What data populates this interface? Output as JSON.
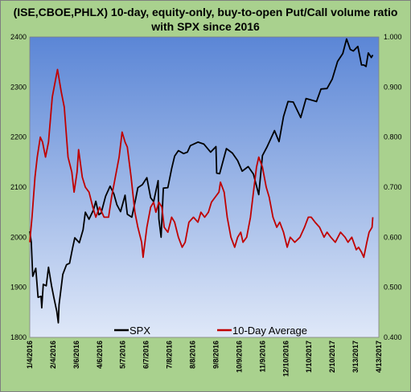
{
  "chart_data": {
    "type": "line",
    "title_lines": [
      "(ISE,CBOE,PHLX) 10-day, equity-only, buy-to-open Put/Call volume ratio",
      "with SPX since 2016"
    ],
    "x_tick_labels": [
      "1/4/2016",
      "2/4/2016",
      "3/6/2016",
      "4/6/2016",
      "5/7/2016",
      "6/7/2016",
      "7/8/2016",
      "8/8/2016",
      "9/8/2016",
      "10/9/2016",
      "11/9/2016",
      "12/10/2016",
      "1/10/2017",
      "2/10/2017",
      "3/13/2017",
      "4/13/2017"
    ],
    "left_axis": {
      "ylim": [
        1800,
        2400
      ],
      "tick_labels": [
        "1800",
        "1900",
        "2000",
        "2100",
        "2200",
        "2300",
        "2400"
      ]
    },
    "right_axis": {
      "ylim": [
        0.4,
        1.0
      ],
      "tick_labels": [
        "0.400",
        "0.500",
        "0.600",
        "0.700",
        "0.800",
        "0.900",
        "1.000"
      ]
    },
    "series": [
      {
        "name": "SPX",
        "color": "#000000",
        "axis": "left",
        "points": [
          [
            "2016-01-04",
            2012
          ],
          [
            "2016-01-06",
            1990
          ],
          [
            "2016-01-08",
            1922
          ],
          [
            "2016-01-12",
            1938
          ],
          [
            "2016-01-15",
            1880
          ],
          [
            "2016-01-19",
            1882
          ],
          [
            "2016-01-20",
            1859
          ],
          [
            "2016-01-22",
            1906
          ],
          [
            "2016-01-26",
            1903
          ],
          [
            "2016-01-29",
            1940
          ],
          [
            "2016-02-02",
            1903
          ],
          [
            "2016-02-05",
            1880
          ],
          [
            "2016-02-09",
            1852
          ],
          [
            "2016-02-11",
            1829
          ],
          [
            "2016-02-12",
            1865
          ],
          [
            "2016-02-17",
            1926
          ],
          [
            "2016-02-22",
            1945
          ],
          [
            "2016-02-26",
            1948
          ],
          [
            "2016-03-01",
            1978
          ],
          [
            "2016-03-04",
            1999
          ],
          [
            "2016-03-10",
            1989
          ],
          [
            "2016-03-15",
            2015
          ],
          [
            "2016-03-18",
            2050
          ],
          [
            "2016-03-23",
            2036
          ],
          [
            "2016-03-29",
            2055
          ],
          [
            "2016-04-01",
            2072
          ],
          [
            "2016-04-05",
            2045
          ],
          [
            "2016-04-08",
            2048
          ],
          [
            "2016-04-14",
            2082
          ],
          [
            "2016-04-20",
            2102
          ],
          [
            "2016-04-25",
            2087
          ],
          [
            "2016-04-29",
            2065
          ],
          [
            "2016-05-04",
            2051
          ],
          [
            "2016-05-10",
            2084
          ],
          [
            "2016-05-13",
            2046
          ],
          [
            "2016-05-19",
            2040
          ],
          [
            "2016-05-24",
            2076
          ],
          [
            "2016-05-27",
            2099
          ],
          [
            "2016-06-02",
            2105
          ],
          [
            "2016-06-08",
            2119
          ],
          [
            "2016-06-13",
            2079
          ],
          [
            "2016-06-17",
            2071
          ],
          [
            "2016-06-23",
            2113
          ],
          [
            "2016-06-24",
            2037
          ],
          [
            "2016-06-27",
            2000
          ],
          [
            "2016-06-30",
            2098
          ],
          [
            "2016-07-06",
            2099
          ],
          [
            "2016-07-11",
            2137
          ],
          [
            "2016-07-15",
            2162
          ],
          [
            "2016-07-20",
            2173
          ],
          [
            "2016-07-27",
            2167
          ],
          [
            "2016-08-01",
            2170
          ],
          [
            "2016-08-05",
            2183
          ],
          [
            "2016-08-15",
            2190
          ],
          [
            "2016-08-23",
            2186
          ],
          [
            "2016-09-01",
            2170
          ],
          [
            "2016-09-08",
            2181
          ],
          [
            "2016-09-09",
            2128
          ],
          [
            "2016-09-13",
            2127
          ],
          [
            "2016-09-22",
            2177
          ],
          [
            "2016-09-30",
            2168
          ],
          [
            "2016-10-07",
            2153
          ],
          [
            "2016-10-13",
            2132
          ],
          [
            "2016-10-21",
            2141
          ],
          [
            "2016-10-28",
            2126
          ],
          [
            "2016-11-04",
            2085
          ],
          [
            "2016-11-09",
            2163
          ],
          [
            "2016-11-15",
            2180
          ],
          [
            "2016-11-25",
            2213
          ],
          [
            "2016-12-01",
            2191
          ],
          [
            "2016-12-07",
            2241
          ],
          [
            "2016-12-13",
            2271
          ],
          [
            "2016-12-20",
            2270
          ],
          [
            "2016-12-30",
            2239
          ],
          [
            "2017-01-06",
            2277
          ],
          [
            "2017-01-13",
            2274
          ],
          [
            "2017-01-20",
            2271
          ],
          [
            "2017-01-26",
            2296
          ],
          [
            "2017-02-03",
            2297
          ],
          [
            "2017-02-10",
            2316
          ],
          [
            "2017-02-17",
            2351
          ],
          [
            "2017-02-24",
            2367
          ],
          [
            "2017-03-01",
            2396
          ],
          [
            "2017-03-06",
            2375
          ],
          [
            "2017-03-10",
            2372
          ],
          [
            "2017-03-16",
            2381
          ],
          [
            "2017-03-21",
            2344
          ],
          [
            "2017-03-24",
            2344
          ],
          [
            "2017-03-27",
            2341
          ],
          [
            "2017-03-30",
            2368
          ],
          [
            "2017-04-03",
            2359
          ],
          [
            "2017-04-05",
            2364
          ]
        ]
      },
      {
        "name": "10-Day Average",
        "color": "#c00000",
        "axis": "right",
        "points": [
          [
            "2016-01-04",
            0.59
          ],
          [
            "2016-01-07",
            0.64
          ],
          [
            "2016-01-11",
            0.72
          ],
          [
            "2016-01-14",
            0.76
          ],
          [
            "2016-01-18",
            0.8
          ],
          [
            "2016-01-21",
            0.79
          ],
          [
            "2016-01-25",
            0.76
          ],
          [
            "2016-01-29",
            0.79
          ],
          [
            "2016-02-03",
            0.88
          ],
          [
            "2016-02-08",
            0.92
          ],
          [
            "2016-02-10",
            0.935
          ],
          [
            "2016-02-15",
            0.89
          ],
          [
            "2016-02-19",
            0.86
          ],
          [
            "2016-02-24",
            0.76
          ],
          [
            "2016-02-29",
            0.73
          ],
          [
            "2016-03-03",
            0.69
          ],
          [
            "2016-03-07",
            0.73
          ],
          [
            "2016-03-09",
            0.775
          ],
          [
            "2016-03-14",
            0.72
          ],
          [
            "2016-03-18",
            0.7
          ],
          [
            "2016-03-23",
            0.69
          ],
          [
            "2016-03-28",
            0.66
          ],
          [
            "2016-04-01",
            0.64
          ],
          [
            "2016-04-06",
            0.66
          ],
          [
            "2016-04-12",
            0.64
          ],
          [
            "2016-04-18",
            0.64
          ],
          [
            "2016-04-22",
            0.68
          ],
          [
            "2016-04-27",
            0.72
          ],
          [
            "2016-05-02",
            0.76
          ],
          [
            "2016-05-06",
            0.81
          ],
          [
            "2016-05-10",
            0.79
          ],
          [
            "2016-05-13",
            0.78
          ],
          [
            "2016-05-18",
            0.72
          ],
          [
            "2016-05-23",
            0.65
          ],
          [
            "2016-05-27",
            0.62
          ],
          [
            "2016-06-01",
            0.59
          ],
          [
            "2016-06-03",
            0.56
          ],
          [
            "2016-06-08",
            0.62
          ],
          [
            "2016-06-13",
            0.66
          ],
          [
            "2016-06-17",
            0.67
          ],
          [
            "2016-06-20",
            0.65
          ],
          [
            "2016-06-24",
            0.67
          ],
          [
            "2016-06-28",
            0.66
          ],
          [
            "2016-07-01",
            0.62
          ],
          [
            "2016-07-06",
            0.61
          ],
          [
            "2016-07-11",
            0.64
          ],
          [
            "2016-07-15",
            0.63
          ],
          [
            "2016-07-20",
            0.6
          ],
          [
            "2016-07-25",
            0.58
          ],
          [
            "2016-07-29",
            0.59
          ],
          [
            "2016-08-03",
            0.63
          ],
          [
            "2016-08-09",
            0.64
          ],
          [
            "2016-08-15",
            0.63
          ],
          [
            "2016-08-19",
            0.65
          ],
          [
            "2016-08-24",
            0.64
          ],
          [
            "2016-08-29",
            0.65
          ],
          [
            "2016-09-02",
            0.67
          ],
          [
            "2016-09-07",
            0.68
          ],
          [
            "2016-09-12",
            0.69
          ],
          [
            "2016-09-14",
            0.71
          ],
          [
            "2016-09-19",
            0.69
          ],
          [
            "2016-09-23",
            0.64
          ],
          [
            "2016-09-28",
            0.6
          ],
          [
            "2016-10-03",
            0.58
          ],
          [
            "2016-10-07",
            0.6
          ],
          [
            "2016-10-11",
            0.61
          ],
          [
            "2016-10-14",
            0.59
          ],
          [
            "2016-10-19",
            0.6
          ],
          [
            "2016-10-24",
            0.64
          ],
          [
            "2016-10-28",
            0.69
          ],
          [
            "2016-11-01",
            0.74
          ],
          [
            "2016-11-04",
            0.76
          ],
          [
            "2016-11-09",
            0.74
          ],
          [
            "2016-11-14",
            0.7
          ],
          [
            "2016-11-18",
            0.68
          ],
          [
            "2016-11-23",
            0.64
          ],
          [
            "2016-11-28",
            0.62
          ],
          [
            "2016-12-02",
            0.63
          ],
          [
            "2016-12-07",
            0.61
          ],
          [
            "2016-12-12",
            0.58
          ],
          [
            "2016-12-16",
            0.6
          ],
          [
            "2016-12-22",
            0.59
          ],
          [
            "2016-12-29",
            0.6
          ],
          [
            "2017-01-04",
            0.62
          ],
          [
            "2017-01-09",
            0.64
          ],
          [
            "2017-01-13",
            0.64
          ],
          [
            "2017-01-18",
            0.63
          ],
          [
            "2017-01-24",
            0.62
          ],
          [
            "2017-01-30",
            0.6
          ],
          [
            "2017-02-03",
            0.61
          ],
          [
            "2017-02-08",
            0.6
          ],
          [
            "2017-02-14",
            0.59
          ],
          [
            "2017-02-21",
            0.61
          ],
          [
            "2017-02-27",
            0.6
          ],
          [
            "2017-03-03",
            0.59
          ],
          [
            "2017-03-08",
            0.6
          ],
          [
            "2017-03-14",
            0.575
          ],
          [
            "2017-03-17",
            0.58
          ],
          [
            "2017-03-21",
            0.57
          ],
          [
            "2017-03-24",
            0.56
          ],
          [
            "2017-03-28",
            0.59
          ],
          [
            "2017-03-31",
            0.61
          ],
          [
            "2017-04-04",
            0.62
          ],
          [
            "2017-04-05",
            0.64
          ]
        ]
      }
    ],
    "legend_position": "bottom",
    "grid": false,
    "plot_gradient": [
      "#5b86d6",
      "#dfe8f8"
    ]
  }
}
